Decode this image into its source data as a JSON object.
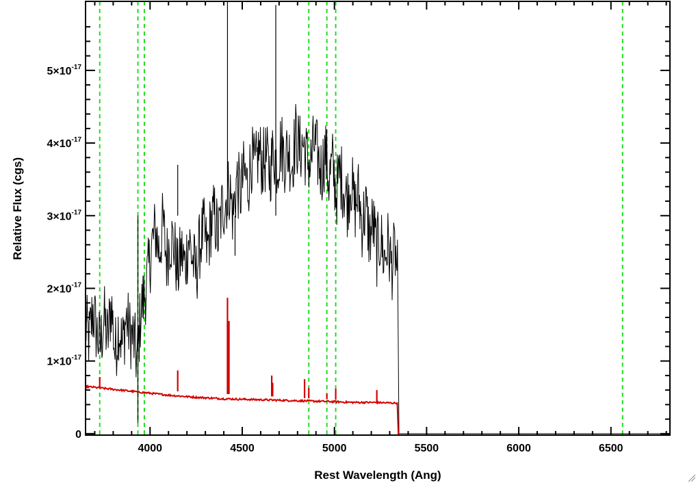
{
  "chart_data": {
    "type": "line",
    "title": "",
    "xlabel": "Rest Wavelength (Ang)",
    "ylabel": "Relative Flux (cgs)",
    "xlim": [
      3650,
      6820
    ],
    "ylim": [
      -0.02,
      5.95
    ],
    "y_exponent_label": "-17",
    "x_ticks": [
      4000,
      4500,
      5000,
      5500,
      6000,
      6500
    ],
    "y_ticks": [
      {
        "value": 0,
        "mantissa": "0",
        "exponent": ""
      },
      {
        "value": 1,
        "mantissa": "1×10",
        "exponent": "-17"
      },
      {
        "value": 2,
        "mantissa": "2×10",
        "exponent": "-17"
      },
      {
        "value": 3,
        "mantissa": "3×10",
        "exponent": "-17"
      },
      {
        "value": 4,
        "mantissa": "4×10",
        "exponent": "-17"
      },
      {
        "value": 5,
        "mantissa": "5×10",
        "exponent": "-17"
      }
    ],
    "vertical_reference_lines": [
      3727,
      3934,
      3969,
      4861,
      4959,
      5007,
      6563
    ],
    "series": [
      {
        "color": "#000000",
        "description_points": [
          [
            3650,
            1.5
          ],
          [
            3670,
            1.3
          ],
          [
            3690,
            1.7
          ],
          [
            3710,
            1.4
          ],
          [
            3730,
            1.2
          ],
          [
            3750,
            1.6
          ],
          [
            3770,
            1.3
          ],
          [
            3790,
            1.8
          ],
          [
            3810,
            1.1
          ],
          [
            3830,
            1.5
          ],
          [
            3850,
            1.2
          ],
          [
            3870,
            1.6
          ],
          [
            3890,
            1.4
          ],
          [
            3910,
            1.3
          ],
          [
            3930,
            1.0
          ],
          [
            3950,
            1.7
          ],
          [
            3970,
            1.9
          ],
          [
            3990,
            2.2
          ],
          [
            4010,
            2.6
          ],
          [
            4030,
            2.8
          ],
          [
            4050,
            2.5
          ],
          [
            4070,
            2.9
          ],
          [
            4090,
            2.4
          ],
          [
            4110,
            2.7
          ],
          [
            4130,
            2.6
          ],
          [
            4150,
            2.2
          ],
          [
            4170,
            2.5
          ],
          [
            4190,
            2.3
          ],
          [
            4210,
            2.7
          ],
          [
            4230,
            2.4
          ],
          [
            4250,
            2.2
          ],
          [
            4270,
            2.6
          ],
          [
            4290,
            2.8
          ],
          [
            4310,
            2.5
          ],
          [
            4330,
            2.9
          ],
          [
            4350,
            3.0
          ],
          [
            4370,
            2.7
          ],
          [
            4390,
            3.1
          ],
          [
            4410,
            3.2
          ],
          [
            4430,
            3.4
          ],
          [
            4450,
            3.0
          ],
          [
            4470,
            3.5
          ],
          [
            4490,
            3.3
          ],
          [
            4510,
            3.6
          ],
          [
            4530,
            3.4
          ],
          [
            4550,
            3.8
          ],
          [
            4570,
            3.6
          ],
          [
            4590,
            3.9
          ],
          [
            4610,
            3.7
          ],
          [
            4630,
            3.8
          ],
          [
            4650,
            3.6
          ],
          [
            4670,
            3.9
          ],
          [
            4690,
            3.7
          ],
          [
            4710,
            4.0
          ],
          [
            4730,
            3.8
          ],
          [
            4750,
            3.9
          ],
          [
            4770,
            3.7
          ],
          [
            4790,
            4.1
          ],
          [
            4810,
            3.9
          ],
          [
            4830,
            4.0
          ],
          [
            4850,
            3.8
          ],
          [
            4870,
            3.7
          ],
          [
            4890,
            4.0
          ],
          [
            4910,
            3.8
          ],
          [
            4930,
            3.6
          ],
          [
            4950,
            3.9
          ],
          [
            4970,
            3.5
          ],
          [
            4990,
            3.7
          ],
          [
            5010,
            3.3
          ],
          [
            5030,
            3.6
          ],
          [
            5050,
            3.4
          ],
          [
            5070,
            3.2
          ],
          [
            5090,
            3.5
          ],
          [
            5110,
            3.1
          ],
          [
            5130,
            3.3
          ],
          [
            5150,
            2.9
          ],
          [
            5170,
            3.1
          ],
          [
            5190,
            2.7
          ],
          [
            5210,
            2.9
          ],
          [
            5230,
            2.5
          ],
          [
            5250,
            2.7
          ],
          [
            5270,
            2.4
          ],
          [
            5290,
            2.6
          ],
          [
            5310,
            2.3
          ],
          [
            5330,
            2.5
          ],
          [
            5345,
            2.1
          ],
          [
            5350,
            0.0
          ],
          [
            6820,
            0.0
          ]
        ],
        "spikes": [
          [
            4420,
            5.95
          ],
          [
            4682,
            5.9
          ],
          [
            3934,
            0.15
          ],
          [
            4150,
            3.7
          ],
          [
            4461,
            2.45
          ]
        ]
      },
      {
        "color": "#d40000",
        "description_points": [
          [
            3650,
            0.65
          ],
          [
            3800,
            0.61
          ],
          [
            3950,
            0.57
          ],
          [
            4100,
            0.53
          ],
          [
            4250,
            0.5
          ],
          [
            4400,
            0.48
          ],
          [
            4550,
            0.47
          ],
          [
            4700,
            0.46
          ],
          [
            4850,
            0.45
          ],
          [
            5000,
            0.44
          ],
          [
            5100,
            0.43
          ],
          [
            5200,
            0.43
          ],
          [
            5345,
            0.42
          ],
          [
            5347,
            -0.02
          ],
          [
            6820,
            -0.02
          ]
        ],
        "emission_lines": [
          [
            3727,
            0.78
          ],
          [
            4150,
            0.87
          ],
          [
            4420,
            1.87
          ],
          [
            4428,
            1.55
          ],
          [
            4660,
            0.8
          ],
          [
            4665,
            0.7
          ],
          [
            4838,
            0.75
          ],
          [
            4861,
            0.63
          ],
          [
            4959,
            0.55
          ],
          [
            5007,
            0.62
          ],
          [
            5230,
            0.6
          ]
        ]
      }
    ]
  }
}
